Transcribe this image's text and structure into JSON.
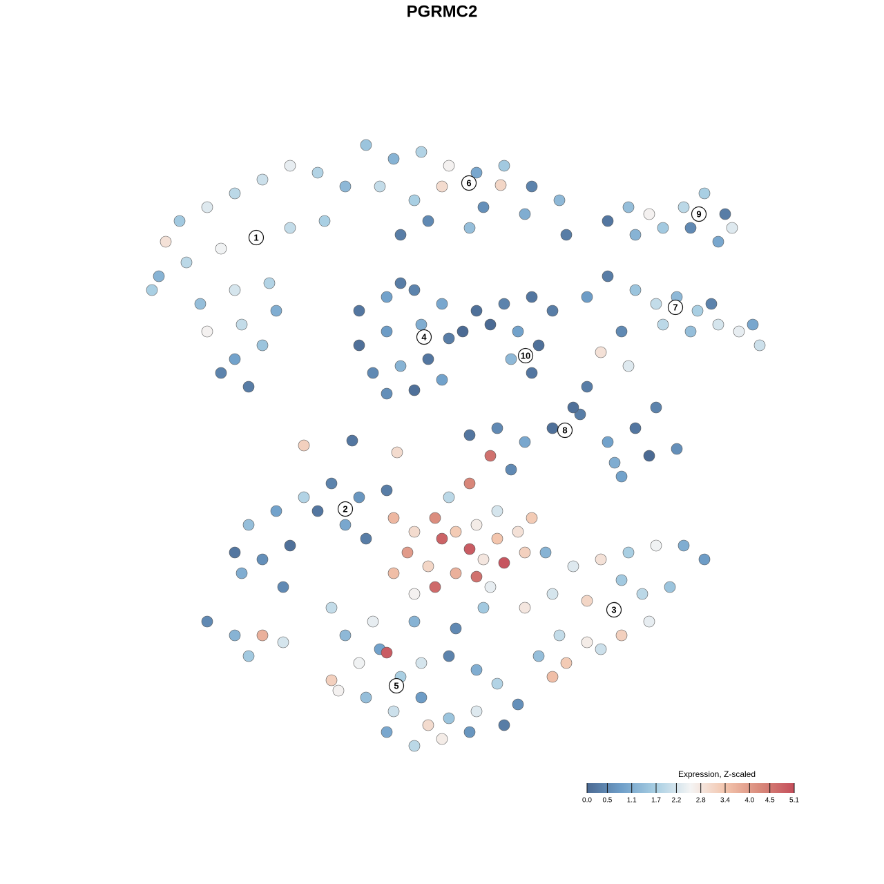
{
  "chart_data": {
    "type": "scatter",
    "title": "PGRMC2",
    "xlim": [
      0,
      128
    ],
    "ylim": [
      0,
      128
    ],
    "x": [
      26,
      30,
      34,
      38,
      42,
      46,
      50,
      23,
      27,
      32,
      37,
      42,
      47,
      29,
      34,
      39,
      30,
      35,
      40,
      32,
      36,
      34,
      38,
      24,
      22,
      53,
      57,
      61,
      65,
      69,
      73,
      77,
      81,
      55,
      60,
      64,
      70,
      76,
      82,
      68,
      62,
      58,
      72.5,
      52,
      56,
      60,
      64,
      52,
      56,
      61,
      65,
      54,
      58,
      62,
      56,
      60,
      64,
      58,
      67,
      69,
      73,
      77,
      80,
      75,
      78,
      74,
      77,
      71,
      88,
      91,
      94,
      96,
      99,
      102,
      105,
      106,
      104,
      100,
      92,
      85,
      88,
      92,
      95,
      98,
      101,
      104,
      107,
      110,
      100,
      96,
      90,
      87,
      91,
      103,
      109,
      68,
      72,
      76,
      80,
      84,
      88,
      92,
      95,
      89,
      94,
      98,
      85,
      83,
      74,
      71,
      90,
      34,
      38,
      42,
      36,
      40,
      44,
      48,
      50,
      53,
      41,
      35,
      46,
      52,
      56,
      30,
      34,
      38,
      36,
      41,
      57,
      60,
      63,
      66,
      69,
      72,
      75,
      59,
      64,
      68,
      73,
      62,
      66,
      70,
      57,
      63,
      69,
      76,
      60,
      71,
      65,
      68,
      72,
      77,
      79,
      83,
      87,
      91,
      95,
      99,
      102,
      80,
      85,
      89,
      93,
      97,
      81,
      85,
      90,
      94,
      78,
      82,
      87,
      80,
      76,
      90,
      48,
      50,
      52,
      55,
      58,
      61,
      65,
      69,
      72,
      75,
      49,
      53,
      57,
      61,
      65,
      69,
      73,
      56,
      60,
      64,
      68,
      54,
      60,
      66,
      70,
      62,
      56,
      48,
      44,
      57.5,
      51
    ],
    "y": [
      96,
      98,
      100,
      102,
      104,
      103,
      101,
      88,
      90,
      92,
      93.5,
      95,
      96,
      84,
      86,
      87,
      80,
      81,
      83,
      74,
      72,
      76,
      78,
      93,
      86,
      107,
      105,
      106,
      104,
      103,
      104,
      101,
      99,
      101,
      99,
      101,
      98,
      97,
      94,
      95,
      96,
      94,
      101.2,
      83,
      85,
      86,
      84,
      78,
      80,
      81,
      79,
      74,
      75,
      76,
      71,
      71.5,
      73,
      87,
      80,
      83,
      84,
      85,
      83,
      80,
      78,
      76,
      74,
      81,
      96,
      98,
      97,
      95,
      98,
      100,
      97,
      95,
      93,
      95,
      94,
      85,
      88,
      86,
      84,
      85,
      83,
      81,
      80,
      78,
      80,
      81,
      80,
      77,
      75,
      84,
      81,
      65,
      66,
      64,
      66,
      68,
      64,
      66,
      69,
      61,
      62,
      63,
      72,
      69,
      60,
      62,
      59,
      48,
      47,
      49,
      52,
      54,
      56,
      58,
      52,
      50,
      43,
      45,
      54,
      56,
      57,
      38,
      36,
      36,
      33,
      35,
      53,
      51,
      53,
      51,
      52,
      50,
      51,
      48,
      50,
      48.5,
      46.5,
      46,
      45,
      47,
      45,
      43,
      44.5,
      48,
      42,
      43,
      56,
      58,
      54,
      53,
      48,
      46,
      47,
      48,
      49,
      49,
      47,
      42,
      41,
      40,
      42,
      43,
      36,
      35,
      36,
      38,
      33,
      32,
      34,
      30,
      40,
      44,
      40,
      36,
      32,
      34,
      30,
      32,
      33,
      31,
      29,
      26,
      28,
      27,
      25,
      27,
      24,
      25,
      23,
      22,
      20,
      21,
      22,
      38,
      38,
      37,
      40,
      23,
      33.5,
      29.5,
      63.5,
      62.5,
      64.2
    ],
    "values": [
      1.6,
      2.3,
      1.9,
      2.1,
      2.4,
      1.8,
      1.3,
      1.2,
      1.9,
      2.5,
      2.6,
      2.0,
      1.7,
      1.4,
      2.2,
      1.8,
      2.6,
      2.0,
      1.1,
      0.4,
      0.3,
      0.9,
      1.5,
      2.9,
      1.7,
      1.5,
      1.2,
      1.8,
      2.6,
      1.0,
      1.6,
      0.4,
      1.3,
      2.0,
      1.7,
      3.0,
      0.6,
      1.1,
      0.3,
      1.4,
      0.5,
      0.3,
      3.1,
      0.2,
      0.9,
      0.4,
      1.0,
      0.1,
      0.8,
      1.1,
      0.3,
      0.5,
      1.2,
      0.2,
      0.6,
      0.1,
      0.9,
      0.3,
      0.0,
      0.1,
      0.4,
      0.2,
      0.3,
      0.9,
      0.1,
      1.3,
      0.2,
      0.0,
      0.2,
      1.4,
      2.6,
      1.6,
      1.9,
      1.7,
      0.3,
      2.3,
      1.0,
      0.5,
      1.2,
      0.8,
      0.3,
      1.5,
      2.0,
      1.3,
      1.7,
      2.2,
      2.4,
      2.1,
      1.4,
      1.9,
      0.5,
      2.9,
      2.3,
      0.4,
      1.0,
      0.2,
      0.5,
      1.0,
      0.1,
      0.3,
      0.9,
      0.2,
      0.4,
      1.1,
      0.0,
      0.6,
      0.3,
      0.1,
      0.5,
      4.6,
      0.9,
      0.2,
      0.6,
      0.1,
      1.4,
      0.9,
      1.8,
      0.4,
      1.0,
      0.3,
      0.5,
      1.1,
      0.2,
      0.7,
      0.3,
      0.5,
      1.2,
      3.7,
      1.6,
      2.2,
      3.6,
      3.0,
      4.2,
      3.3,
      2.7,
      3.4,
      2.9,
      4.0,
      4.8,
      4.9,
      5.0,
      3.1,
      3.7,
      2.8,
      3.5,
      4.7,
      4.6,
      3.2,
      2.6,
      2.4,
      1.9,
      4.3,
      2.2,
      3.3,
      1.2,
      2.3,
      2.9,
      1.7,
      2.5,
      1.1,
      0.8,
      2.2,
      3.1,
      2.6,
      1.9,
      1.5,
      2.0,
      2.7,
      3.2,
      2.4,
      1.4,
      3.3,
      2.1,
      3.5,
      2.8,
      1.6,
      2.0,
      1.3,
      2.5,
      0.9,
      1.7,
      2.2,
      0.4,
      1.1,
      1.8,
      0.6,
      2.6,
      1.4,
      2.1,
      0.8,
      1.5,
      2.3,
      0.3,
      1.0,
      1.9,
      2.7,
      0.7,
      2.4,
      1.2,
      0.5,
      1.6,
      3.0,
      4.9,
      3.2,
      3.2,
      3.0,
      0.2
    ],
    "annotations": [
      {
        "text": "1",
        "x": 37.1,
        "y": 93.6
      },
      {
        "text": "2",
        "x": 50,
        "y": 54.3
      },
      {
        "text": "3",
        "x": 88.9,
        "y": 39.7
      },
      {
        "text": "4",
        "x": 61.4,
        "y": 79.2
      },
      {
        "text": "5",
        "x": 57.4,
        "y": 28.7
      },
      {
        "text": "6",
        "x": 67.9,
        "y": 101.5
      },
      {
        "text": "7",
        "x": 97.8,
        "y": 83.5
      },
      {
        "text": "8",
        "x": 81.8,
        "y": 65.7
      },
      {
        "text": "9",
        "x": 101.2,
        "y": 97
      },
      {
        "text": "10",
        "x": 76.1,
        "y": 76.5
      }
    ],
    "colorbar_title": "Expression, Z-scaled",
    "clim": [
      0,
      5.1
    ],
    "colors": [
      "#4b6a93",
      "#6f9fc9",
      "#a9cfe3",
      "#f4f4f4",
      "#f3c5ad",
      "#d98a7b",
      "#c44e5b"
    ],
    "colorbar_ticks": [
      {
        "value": 0,
        "label": "0.0"
      },
      0.5,
      1.1,
      1.7,
      2.2,
      2.8,
      3.4,
      {
        "value": 4,
        "label": "4.0"
      },
      4.5,
      5.1
    ]
  }
}
